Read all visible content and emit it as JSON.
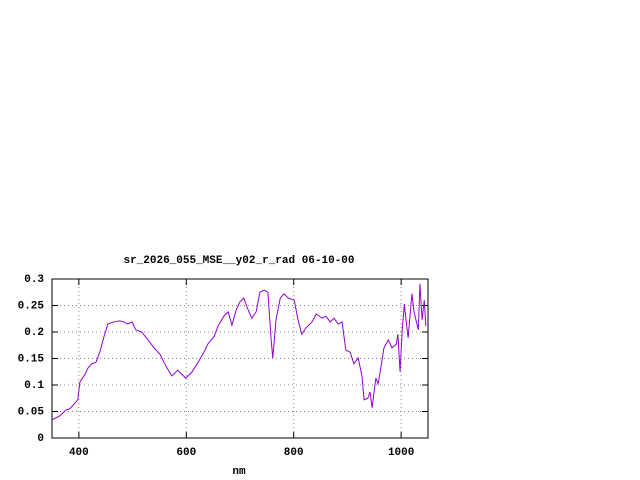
{
  "chart_data": {
    "type": "line",
    "title": "sr_2026_055_MSE__y02_r_rad 06-10-00",
    "x_label": "nm",
    "xlim": [
      350,
      1050
    ],
    "ylim": [
      0,
      0.3
    ],
    "xticks": [
      400,
      600,
      800,
      1000
    ],
    "yticks": [
      0,
      0.05,
      0.1,
      0.15,
      0.2,
      0.25,
      0.3
    ],
    "grid": true,
    "series": [
      {
        "color": "#9400d3",
        "x": [
          350,
          365,
          376,
          383,
          391,
          398,
          402,
          411,
          417,
          424,
          432,
          439,
          447,
          454,
          465,
          476,
          484,
          491,
          499,
          506,
          517,
          529,
          540,
          551,
          562,
          573,
          584,
          599,
          611,
          622,
          633,
          640,
          652,
          659,
          670,
          678,
          685,
          693,
          700,
          707,
          715,
          722,
          730,
          737,
          745,
          752,
          758,
          761,
          767,
          775,
          782,
          790,
          801,
          808,
          815,
          823,
          834,
          842,
          853,
          860,
          868,
          875,
          883,
          890,
          897,
          905,
          912,
          920,
          927,
          931,
          938,
          942,
          946,
          950,
          953,
          957,
          961,
          968,
          976,
          983,
          991,
          994,
          998,
          1002,
          1006,
          1009,
          1013,
          1020,
          1024,
          1032,
          1035,
          1039,
          1043,
          1046
        ],
        "values": [
          0.034,
          0.042,
          0.053,
          0.055,
          0.064,
          0.072,
          0.106,
          0.119,
          0.132,
          0.14,
          0.143,
          0.162,
          0.192,
          0.215,
          0.219,
          0.221,
          0.219,
          0.215,
          0.219,
          0.204,
          0.2,
          0.185,
          0.17,
          0.158,
          0.136,
          0.117,
          0.128,
          0.113,
          0.125,
          0.143,
          0.162,
          0.177,
          0.192,
          0.211,
          0.23,
          0.238,
          0.213,
          0.242,
          0.257,
          0.264,
          0.242,
          0.226,
          0.238,
          0.275,
          0.279,
          0.275,
          0.185,
          0.151,
          0.223,
          0.264,
          0.272,
          0.264,
          0.26,
          0.223,
          0.196,
          0.208,
          0.219,
          0.234,
          0.226,
          0.23,
          0.219,
          0.226,
          0.215,
          0.219,
          0.166,
          0.162,
          0.14,
          0.151,
          0.117,
          0.072,
          0.075,
          0.087,
          0.057,
          0.091,
          0.113,
          0.102,
          0.125,
          0.17,
          0.185,
          0.17,
          0.177,
          0.196,
          0.125,
          0.204,
          0.253,
          0.223,
          0.189,
          0.272,
          0.238,
          0.204,
          0.291,
          0.223,
          0.26,
          0.211
        ]
      }
    ]
  }
}
